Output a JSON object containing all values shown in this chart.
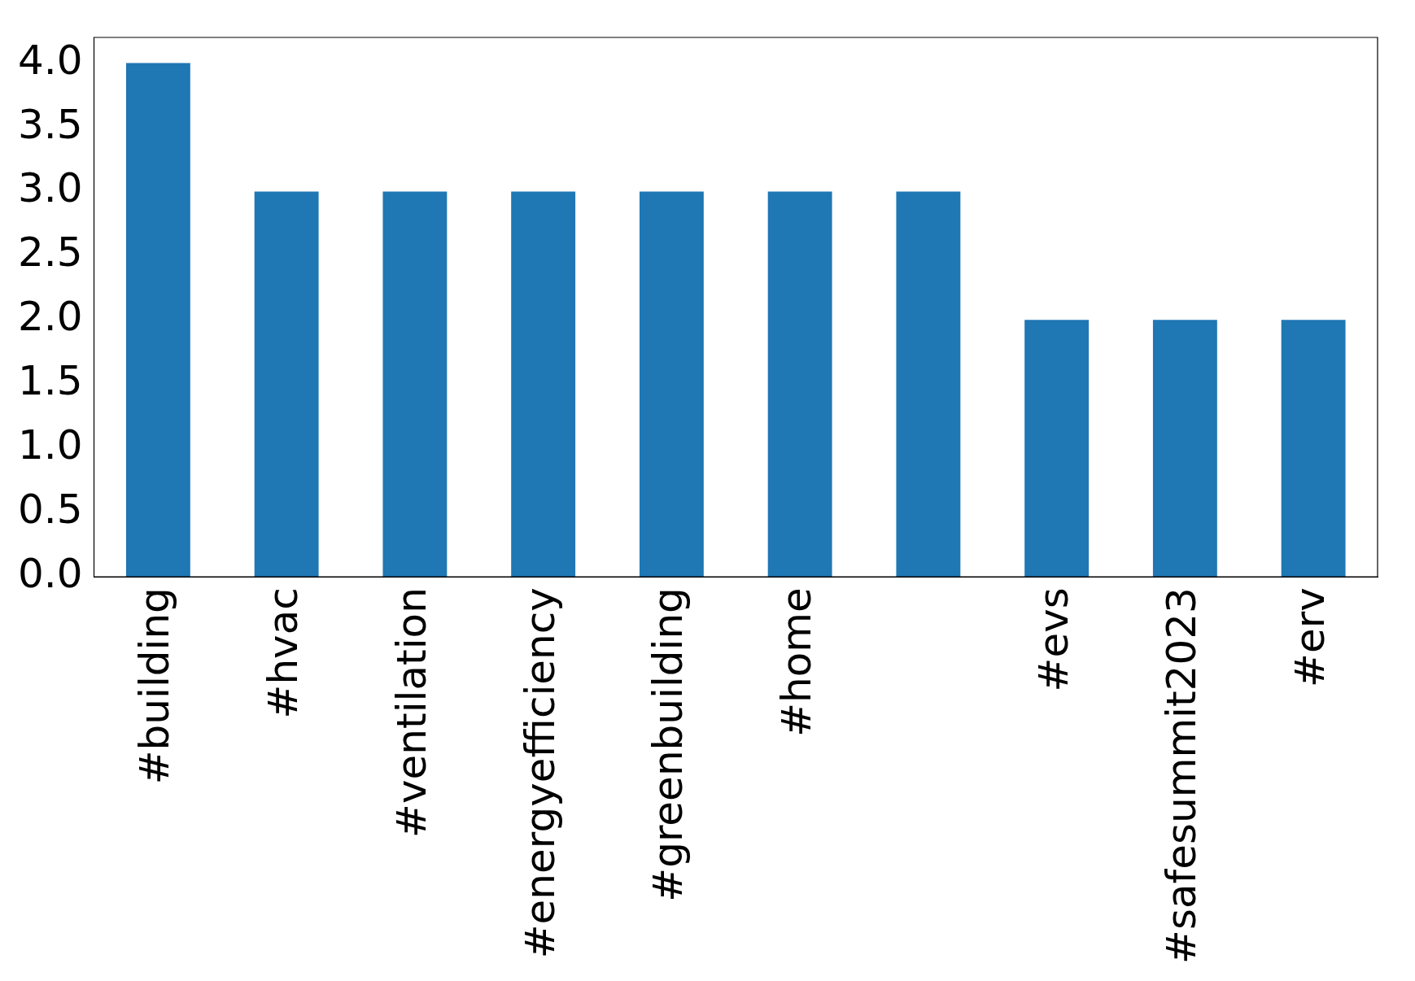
{
  "chart_data": {
    "type": "bar",
    "categories": [
      "#building",
      "#hvac",
      "#ventilation",
      "#energyefficiency",
      "#greenbuilding",
      "#home",
      null,
      "#evs",
      "#safesummit2023",
      "#erv"
    ],
    "values": [
      4,
      3,
      3,
      3,
      3,
      3,
      3,
      2,
      2,
      2
    ],
    "color": "#1f77b4",
    "ylim": [
      0,
      4.2
    ],
    "yticks": [
      {
        "value": 0,
        "label": "0.0"
      },
      {
        "value": 0.5,
        "label": "0.5"
      },
      {
        "value": 1,
        "label": "1.0"
      },
      {
        "value": 1.5,
        "label": "1.5"
      },
      {
        "value": 2,
        "label": "2.0"
      },
      {
        "value": 2.5,
        "label": "2.5"
      },
      {
        "value": 3,
        "label": "3.0"
      },
      {
        "value": 3.5,
        "label": "3.5"
      },
      {
        "value": 4,
        "label": "4.0"
      }
    ],
    "grid": false,
    "legend": false
  }
}
